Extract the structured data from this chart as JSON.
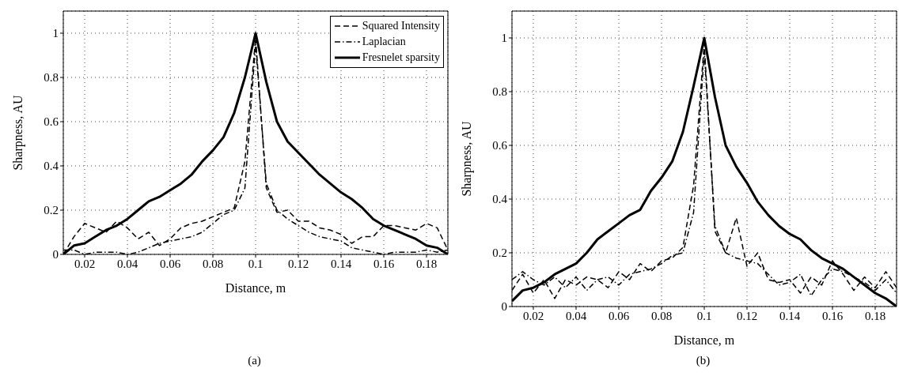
{
  "chart_data": [
    {
      "type": "line",
      "xlabel": "Distance, m",
      "ylabel": "Sharpness, AU",
      "annotations": [
        "(a)"
      ],
      "xlim": [
        0.01,
        0.19
      ],
      "ylim": [
        0,
        1.1
      ],
      "xticks": [
        0.02,
        0.04,
        0.06,
        0.08,
        0.1,
        0.12,
        0.14,
        0.16,
        0.18
      ],
      "yticks": [
        0,
        0.2,
        0.4,
        0.6,
        0.8,
        1
      ],
      "grid": true,
      "legend": "top right",
      "x": [
        0.01,
        0.015,
        0.02,
        0.025,
        0.03,
        0.035,
        0.04,
        0.045,
        0.05,
        0.055,
        0.06,
        0.065,
        0.07,
        0.075,
        0.08,
        0.085,
        0.09,
        0.095,
        0.1,
        0.105,
        0.11,
        0.115,
        0.12,
        0.125,
        0.13,
        0.135,
        0.14,
        0.145,
        0.15,
        0.155,
        0.16,
        0.165,
        0.17,
        0.175,
        0.18,
        0.185,
        0.19
      ],
      "series": [
        {
          "name": "Squared Intensity",
          "color": "#000000",
          "line_style": "dashed",
          "values": [
            0,
            0.08,
            0.14,
            0.12,
            0.1,
            0.15,
            0.12,
            0.07,
            0.1,
            0.04,
            0.07,
            0.12,
            0.14,
            0.15,
            0.17,
            0.19,
            0.21,
            0.42,
            0.98,
            0.3,
            0.19,
            0.2,
            0.15,
            0.15,
            0.12,
            0.11,
            0.09,
            0.05,
            0.08,
            0.08,
            0.13,
            0.13,
            0.12,
            0.11,
            0.14,
            0.12,
            0.02
          ]
        },
        {
          "name": "Laplacian",
          "color": "#000000",
          "line_style": "dashdot",
          "values": [
            0.02,
            0.02,
            0,
            0.01,
            0.01,
            0.01,
            0,
            0.01,
            0.03,
            0.05,
            0.06,
            0.07,
            0.08,
            0.1,
            0.14,
            0.18,
            0.2,
            0.3,
            0.95,
            0.32,
            0.2,
            0.16,
            0.13,
            0.1,
            0.08,
            0.07,
            0.06,
            0.03,
            0.02,
            0.01,
            0,
            0.01,
            0.01,
            0.01,
            0.02,
            0.01,
            0.02
          ]
        },
        {
          "name": "Fresnelet sparsity",
          "color": "#000000",
          "line_style": "solid",
          "values": [
            0,
            0.04,
            0.05,
            0.08,
            0.11,
            0.13,
            0.16,
            0.2,
            0.24,
            0.26,
            0.29,
            0.32,
            0.36,
            0.42,
            0.47,
            0.53,
            0.64,
            0.8,
            1.0,
            0.78,
            0.6,
            0.51,
            0.46,
            0.41,
            0.36,
            0.32,
            0.28,
            0.25,
            0.21,
            0.16,
            0.13,
            0.11,
            0.09,
            0.07,
            0.04,
            0.03,
            0
          ]
        }
      ]
    },
    {
      "type": "line",
      "xlabel": "Distance, m",
      "ylabel": "Sharpness, AU",
      "annotations": [
        "(b)"
      ],
      "xlim": [
        0.01,
        0.19
      ],
      "ylim": [
        0,
        1.1
      ],
      "xticks": [
        0.02,
        0.04,
        0.06,
        0.08,
        0.1,
        0.12,
        0.14,
        0.16,
        0.18
      ],
      "yticks": [
        0,
        0.2,
        0.4,
        0.6,
        0.8,
        1
      ],
      "grid": true,
      "x": [
        0.01,
        0.015,
        0.02,
        0.025,
        0.03,
        0.035,
        0.04,
        0.045,
        0.05,
        0.055,
        0.06,
        0.065,
        0.07,
        0.075,
        0.08,
        0.085,
        0.09,
        0.095,
        0.1,
        0.105,
        0.11,
        0.115,
        0.12,
        0.125,
        0.13,
        0.135,
        0.14,
        0.145,
        0.15,
        0.155,
        0.16,
        0.165,
        0.17,
        0.175,
        0.18,
        0.185,
        0.19
      ],
      "series": [
        {
          "color": "#000000",
          "line_style": "dashed",
          "values": [
            0.06,
            0.12,
            0.05,
            0.1,
            0.03,
            0.1,
            0.08,
            0.11,
            0.1,
            0.07,
            0.13,
            0.1,
            0.16,
            0.13,
            0.17,
            0.18,
            0.22,
            0.45,
            0.98,
            0.28,
            0.2,
            0.33,
            0.15,
            0.2,
            0.1,
            0.09,
            0.1,
            0.05,
            0.11,
            0.08,
            0.17,
            0.12,
            0.06,
            0.11,
            0.07,
            0.13,
            0.07
          ]
        },
        {
          "color": "#000000",
          "line_style": "dashdot",
          "values": [
            0.1,
            0.13,
            0.1,
            0.08,
            0.11,
            0.07,
            0.11,
            0.06,
            0.1,
            0.11,
            0.08,
            0.12,
            0.13,
            0.14,
            0.16,
            0.19,
            0.2,
            0.35,
            0.95,
            0.3,
            0.2,
            0.18,
            0.17,
            0.16,
            0.12,
            0.08,
            0.09,
            0.12,
            0.04,
            0.1,
            0.14,
            0.13,
            0.11,
            0.09,
            0.06,
            0.1,
            0.05
          ]
        },
        {
          "color": "#000000",
          "line_style": "solid",
          "values": [
            0.02,
            0.06,
            0.07,
            0.09,
            0.12,
            0.14,
            0.16,
            0.2,
            0.25,
            0.28,
            0.31,
            0.34,
            0.36,
            0.43,
            0.48,
            0.54,
            0.65,
            0.82,
            1.0,
            0.78,
            0.6,
            0.52,
            0.46,
            0.39,
            0.34,
            0.3,
            0.27,
            0.25,
            0.21,
            0.18,
            0.16,
            0.14,
            0.11,
            0.08,
            0.05,
            0.03,
            0
          ]
        }
      ]
    }
  ]
}
